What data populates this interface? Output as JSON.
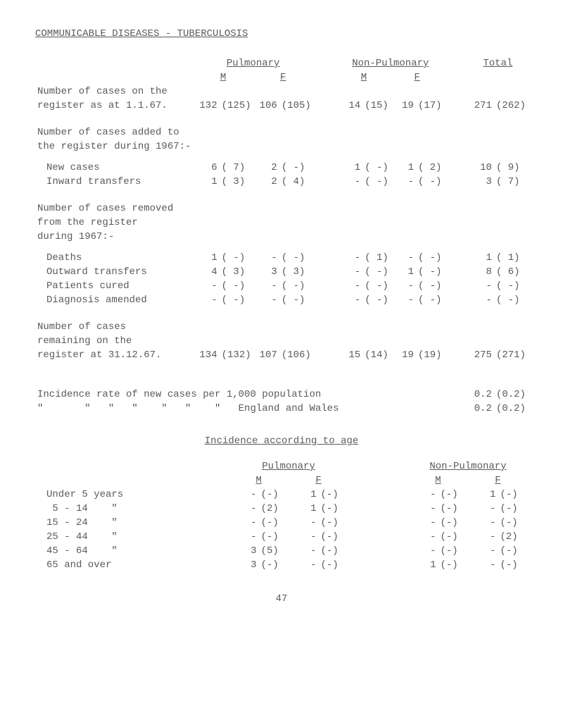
{
  "title": "COMMUNICABLE DISEASES - TUBERCULOSIS",
  "hdr": {
    "pulm": "Pulmonary",
    "nonpulm": "Non-Pulmonary",
    "total": "Total",
    "M": "M",
    "F": "F"
  },
  "rows1": {
    "r1_lbl": "Number of cases on the",
    "r1b_lbl": "register as at 1.1.67.",
    "r1b": {
      "pm_m": "132",
      "pm_mp": "(125)",
      "pm_f": "106",
      "pm_fp": "(105)",
      "np_m": "14",
      "np_mp": "(15)",
      "np_f": "19",
      "np_fp": "(17)",
      "t_m": "271",
      "t_f": "(262)"
    }
  },
  "sec2_h1": "Number of cases added to",
  "sec2_h2": "the register during 1967:-",
  "r_new_lbl": "New cases",
  "r_new": {
    "pm_m": "6",
    "pm_mp": "( 7)",
    "pm_f": "2",
    "pm_fp": "( -)",
    "np_m": "1",
    "np_mp": "( -)",
    "np_f": "1",
    "np_fp": "( 2)",
    "t_m": "10",
    "t_f": "( 9)"
  },
  "r_inw_lbl": "Inward transfers",
  "r_inw": {
    "pm_m": "1",
    "pm_mp": "( 3)",
    "pm_f": "2",
    "pm_fp": "( 4)",
    "np_m": "-",
    "np_mp": "( -)",
    "np_f": "-",
    "np_fp": "( -)",
    "t_m": "3",
    "t_f": "( 7)"
  },
  "sec3_h1": "Number of cases removed",
  "sec3_h2": "from the register",
  "sec3_h3": "during 1967:-",
  "r_dth_lbl": "Deaths",
  "r_dth": {
    "pm_m": "1",
    "pm_mp": "( -)",
    "pm_f": "-",
    "pm_fp": "( -)",
    "np_m": "-",
    "np_mp": "( 1)",
    "np_f": "-",
    "np_fp": "( -)",
    "t_m": "1",
    "t_f": "( 1)"
  },
  "r_out_lbl": "Outward transfers",
  "r_out": {
    "pm_m": "4",
    "pm_mp": "( 3)",
    "pm_f": "3",
    "pm_fp": "( 3)",
    "np_m": "-",
    "np_mp": "( -)",
    "np_f": "1",
    "np_fp": "( -)",
    "t_m": "8",
    "t_f": "( 6)"
  },
  "r_cur_lbl": "Patients cured",
  "r_cur": {
    "pm_m": "-",
    "pm_mp": "( -)",
    "pm_f": "-",
    "pm_fp": "( -)",
    "np_m": "-",
    "np_mp": "( -)",
    "np_f": "-",
    "np_fp": "( -)",
    "t_m": "-",
    "t_f": "( -)"
  },
  "r_dia_lbl": "Diagnosis amended",
  "r_dia": {
    "pm_m": "-",
    "pm_mp": "( -)",
    "pm_f": "-",
    "pm_fp": "( -)",
    "np_m": "-",
    "np_mp": "( -)",
    "np_f": "-",
    "np_fp": "( -)",
    "t_m": "-",
    "t_f": "( -)"
  },
  "sec4_h1": "Number of cases",
  "sec4_h2": "remaining on the",
  "sec4_h3_lbl": "register at 31.12.67.",
  "r_end": {
    "pm_m": "134",
    "pm_mp": "(132)",
    "pm_f": "107",
    "pm_fp": "(106)",
    "np_m": "15",
    "np_mp": "(14)",
    "np_f": "19",
    "np_fp": "(19)",
    "t_m": "275",
    "t_f": "(271)"
  },
  "inc1": "Incidence rate of new cases per 1,000 population",
  "inc1v": "0.2",
  "inc1vp": "(0.2)",
  "inc2": "\"       \"   \"   \"    \"   \"    \"   England and Wales",
  "inc2v": "0.2",
  "inc2vp": "(0.2)",
  "age_title": "Incidence according to age",
  "age_h": {
    "pulm": "Pulmonary",
    "nonpulm": "Non-Pulmonary",
    "M": "M",
    "F": "F"
  },
  "age_rows": [
    {
      "lbl": "Under 5 years",
      "pm": "-",
      "pmp": "(-)",
      "pf": "1",
      "pfp": "(-)",
      "nm": "-",
      "nmp": "(-)",
      "nf": "1",
      "nfp": "(-)"
    },
    {
      "lbl": " 5 - 14    \"",
      "pm": "-",
      "pmp": "(2)",
      "pf": "1",
      "pfp": "(-)",
      "nm": "-",
      "nmp": "(-)",
      "nf": "-",
      "nfp": "(-)"
    },
    {
      "lbl": "15 - 24    \"",
      "pm": "-",
      "pmp": "(-)",
      "pf": "-",
      "pfp": "(-)",
      "nm": "-",
      "nmp": "(-)",
      "nf": "-",
      "nfp": "(-)"
    },
    {
      "lbl": "25 - 44    \"",
      "pm": "-",
      "pmp": "(-)",
      "pf": "-",
      "pfp": "(-)",
      "nm": "-",
      "nmp": "(-)",
      "nf": "-",
      "nfp": "(2)"
    },
    {
      "lbl": "45 - 64    \"",
      "pm": "3",
      "pmp": "(5)",
      "pf": "-",
      "pfp": "(-)",
      "nm": "-",
      "nmp": "(-)",
      "nf": "-",
      "nfp": "(-)"
    },
    {
      "lbl": "65 and over",
      "pm": "3",
      "pmp": "(-)",
      "pf": "-",
      "pfp": "(-)",
      "nm": "1",
      "nmp": "(-)",
      "nf": "-",
      "nfp": "(-)"
    }
  ],
  "pagenum": "47"
}
